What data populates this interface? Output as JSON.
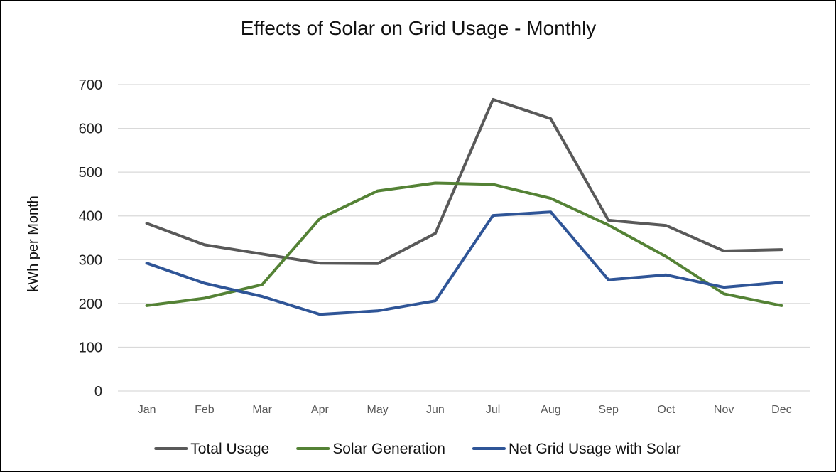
{
  "chart_data": {
    "type": "line",
    "title": "Effects of Solar on Grid Usage - Monthly",
    "xlabel": "",
    "ylabel": "kWh per Month",
    "ylim": [
      0,
      700
    ],
    "yticks": [
      0,
      100,
      200,
      300,
      400,
      500,
      600,
      700
    ],
    "grid": true,
    "legend_position": "bottom",
    "categories": [
      "Jan",
      "Feb",
      "Mar",
      "Apr",
      "May",
      "Jun",
      "Jul",
      "Aug",
      "Sep",
      "Oct",
      "Nov",
      "Dec"
    ],
    "series": [
      {
        "name": "Total Usage",
        "color": "#595959",
        "values": [
          383,
          334,
          313,
          292,
          291,
          360,
          666,
          622,
          390,
          378,
          320,
          323
        ]
      },
      {
        "name": "Solar Generation",
        "color": "#548235",
        "values": [
          195,
          212,
          243,
          394,
          457,
          475,
          472,
          440,
          379,
          307,
          222,
          195
        ]
      },
      {
        "name": "Net Grid Usage with Solar",
        "color": "#2f5597",
        "values": [
          292,
          246,
          216,
          175,
          183,
          206,
          401,
          409,
          254,
          265,
          237,
          248
        ]
      }
    ]
  }
}
